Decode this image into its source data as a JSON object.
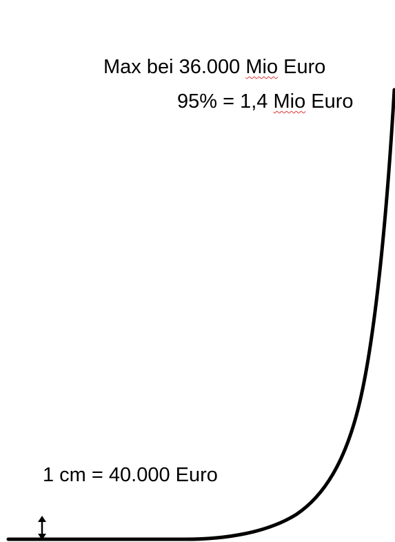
{
  "annotations": {
    "max_prefix": "Max bei 36.000 ",
    "max_mio": "Mio",
    "max_suffix": " Euro",
    "p95_prefix": "95% = 1,4 ",
    "p95_mio": "Mio",
    "p95_suffix": " Euro",
    "scale": "1 cm = 40.000 Euro"
  },
  "style": {
    "curve_color": "#000000",
    "spellcheck_underline_color": "#d33"
  },
  "icons": {
    "scale_marker": "double-headed-vertical-arrow-icon"
  }
}
